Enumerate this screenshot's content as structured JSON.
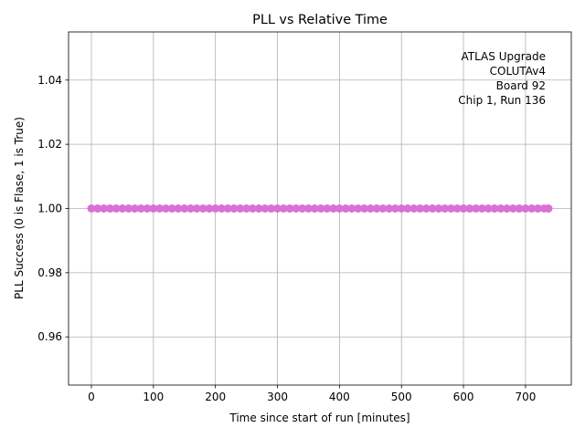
{
  "chart_data": {
    "type": "scatter",
    "title": "PLL vs Relative Time",
    "xlabel": "Time since start of run [minutes]",
    "ylabel": "PLL Success (0 is Flase, 1 is True)",
    "annotation": [
      "ATLAS Upgrade",
      "COLUTAv4",
      "Board 92",
      "Chip 1, Run 136"
    ],
    "color": "#da70d6",
    "x": [
      0,
      10,
      20,
      30,
      40,
      50,
      60,
      70,
      80,
      90,
      100,
      110,
      120,
      130,
      140,
      150,
      160,
      170,
      180,
      190,
      200,
      210,
      220,
      230,
      240,
      250,
      260,
      270,
      280,
      290,
      300,
      310,
      320,
      330,
      340,
      350,
      360,
      370,
      380,
      390,
      400,
      410,
      420,
      430,
      440,
      450,
      460,
      470,
      480,
      490,
      500,
      510,
      520,
      530,
      540,
      550,
      560,
      570,
      580,
      590,
      600,
      610,
      620,
      630,
      640,
      650,
      660,
      670,
      680,
      690,
      700,
      710,
      720,
      730,
      737
    ],
    "values": [
      1,
      1,
      1,
      1,
      1,
      1,
      1,
      1,
      1,
      1,
      1,
      1,
      1,
      1,
      1,
      1,
      1,
      1,
      1,
      1,
      1,
      1,
      1,
      1,
      1,
      1,
      1,
      1,
      1,
      1,
      1,
      1,
      1,
      1,
      1,
      1,
      1,
      1,
      1,
      1,
      1,
      1,
      1,
      1,
      1,
      1,
      1,
      1,
      1,
      1,
      1,
      1,
      1,
      1,
      1,
      1,
      1,
      1,
      1,
      1,
      1,
      1,
      1,
      1,
      1,
      1,
      1,
      1,
      1,
      1,
      1,
      1,
      1,
      1,
      1
    ],
    "xlim": [
      -36.85,
      773.85
    ],
    "xticks": [
      0,
      100,
      200,
      300,
      400,
      500,
      600,
      700
    ],
    "ylim": [
      0.945,
      1.055
    ],
    "yticks": [
      0.96,
      0.98,
      {
        "value": 1,
        "label": "1.00"
      },
      1.02,
      1.04
    ],
    "grid": true
  }
}
